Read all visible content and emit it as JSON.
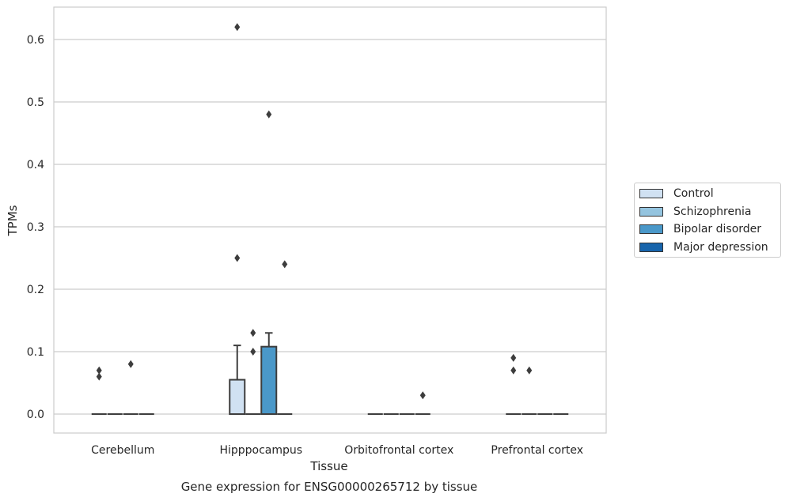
{
  "chart_data": {
    "type": "box",
    "xlabel": "Tissue",
    "ylabel": "TPMs",
    "caption": "Gene expression for ENSG00000265712 by tissue",
    "ylim": [
      -0.03,
      0.65
    ],
    "yticks": [
      "0.0",
      "0.1",
      "0.2",
      "0.3",
      "0.4",
      "0.5",
      "0.6"
    ],
    "categories": [
      "Cerebellum",
      "Hipppocampus",
      "Orbitofrontal cortex",
      "Prefrontal cortex"
    ],
    "grid": true,
    "legend_position": "right",
    "series": [
      {
        "name": "Control",
        "color": "#d0e1f2",
        "boxes": [
          {
            "q1": 0,
            "median": 0,
            "q3": 0,
            "whisker_low": 0,
            "whisker_high": 0,
            "outliers": [
              0.06,
              0.07
            ]
          },
          {
            "q1": 0,
            "median": 0,
            "q3": 0.055,
            "whisker_low": 0,
            "whisker_high": 0.11,
            "outliers": [
              0.25,
              0.62
            ]
          },
          {
            "q1": 0,
            "median": 0,
            "q3": 0,
            "whisker_low": 0,
            "whisker_high": 0,
            "outliers": []
          },
          {
            "q1": 0,
            "median": 0,
            "q3": 0,
            "whisker_low": 0,
            "whisker_high": 0,
            "outliers": [
              0.07,
              0.09
            ]
          }
        ]
      },
      {
        "name": "Schizophrenia",
        "color": "#94c4df",
        "boxes": [
          {
            "q1": 0,
            "median": 0,
            "q3": 0,
            "whisker_low": 0,
            "whisker_high": 0,
            "outliers": []
          },
          {
            "q1": 0,
            "median": 0,
            "q3": 0,
            "whisker_low": 0,
            "whisker_high": 0,
            "outliers": [
              0.1,
              0.13
            ]
          },
          {
            "q1": 0,
            "median": 0,
            "q3": 0,
            "whisker_low": 0,
            "whisker_high": 0,
            "outliers": []
          },
          {
            "q1": 0,
            "median": 0,
            "q3": 0,
            "whisker_low": 0,
            "whisker_high": 0,
            "outliers": [
              0.07
            ]
          }
        ]
      },
      {
        "name": "Bipolar disorder",
        "color": "#4a98c9",
        "boxes": [
          {
            "q1": 0,
            "median": 0,
            "q3": 0,
            "whisker_low": 0,
            "whisker_high": 0,
            "outliers": [
              0.08
            ]
          },
          {
            "q1": 0,
            "median": 0,
            "q3": 0.108,
            "whisker_low": 0,
            "whisker_high": 0.13,
            "outliers": [
              0.48
            ]
          },
          {
            "q1": 0,
            "median": 0,
            "q3": 0,
            "whisker_low": 0,
            "whisker_high": 0,
            "outliers": []
          },
          {
            "q1": 0,
            "median": 0,
            "q3": 0,
            "whisker_low": 0,
            "whisker_high": 0,
            "outliers": []
          }
        ]
      },
      {
        "name": "Major depression",
        "color": "#1764ab",
        "boxes": [
          {
            "q1": 0,
            "median": 0,
            "q3": 0,
            "whisker_low": 0,
            "whisker_high": 0,
            "outliers": []
          },
          {
            "q1": 0,
            "median": 0,
            "q3": 0,
            "whisker_low": 0,
            "whisker_high": 0,
            "outliers": [
              0.24
            ]
          },
          {
            "q1": 0,
            "median": 0,
            "q3": 0,
            "whisker_low": 0,
            "whisker_high": 0,
            "outliers": [
              0.03
            ]
          },
          {
            "q1": 0,
            "median": 0,
            "q3": 0,
            "whisker_low": 0,
            "whisker_high": 0,
            "outliers": []
          }
        ]
      }
    ]
  }
}
